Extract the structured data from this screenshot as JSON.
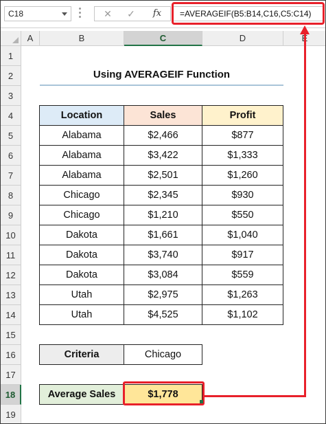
{
  "formula_bar": {
    "name_box": "C18",
    "cancel_icon": "✕",
    "enter_icon": "✓",
    "fx_label": "fx",
    "formula": "=AVERAGEIF(B5:B14,C16,C5:C14)"
  },
  "columns": [
    "A",
    "B",
    "C",
    "D",
    "E"
  ],
  "rows": [
    "1",
    "2",
    "3",
    "4",
    "5",
    "6",
    "7",
    "8",
    "9",
    "10",
    "11",
    "12",
    "13",
    "14",
    "15",
    "16",
    "17",
    "18",
    "19"
  ],
  "sheet": {
    "title": "Using AVERAGEIF Function",
    "headers": {
      "location": "Location",
      "sales": "Sales",
      "profit": "Profit"
    },
    "data": [
      {
        "location": "Alabama",
        "sales": "$2,466",
        "profit": "$877"
      },
      {
        "location": "Alabama",
        "sales": "$3,422",
        "profit": "$1,333"
      },
      {
        "location": "Alabama",
        "sales": "$2,501",
        "profit": "$1,260"
      },
      {
        "location": "Chicago",
        "sales": "$2,345",
        "profit": "$930"
      },
      {
        "location": "Chicago",
        "sales": "$1,210",
        "profit": "$550"
      },
      {
        "location": "Dakota",
        "sales": "$1,661",
        "profit": "$1,040"
      },
      {
        "location": "Dakota",
        "sales": "$3,740",
        "profit": "$917"
      },
      {
        "location": "Dakota",
        "sales": "$3,084",
        "profit": "$559"
      },
      {
        "location": "Utah",
        "sales": "$2,975",
        "profit": "$1,263"
      },
      {
        "location": "Utah",
        "sales": "$4,525",
        "profit": "$1,102"
      }
    ],
    "criteria_label": "Criteria",
    "criteria_value": "Chicago",
    "average_label": "Average Sales",
    "average_value": "$1,778"
  },
  "colors": {
    "location_header": "#ddebf7",
    "sales_header": "#fce4d6",
    "profit_header": "#fff2cc",
    "highlight": "#e8202a",
    "selection": "#217346"
  },
  "selected_cell": "C18"
}
